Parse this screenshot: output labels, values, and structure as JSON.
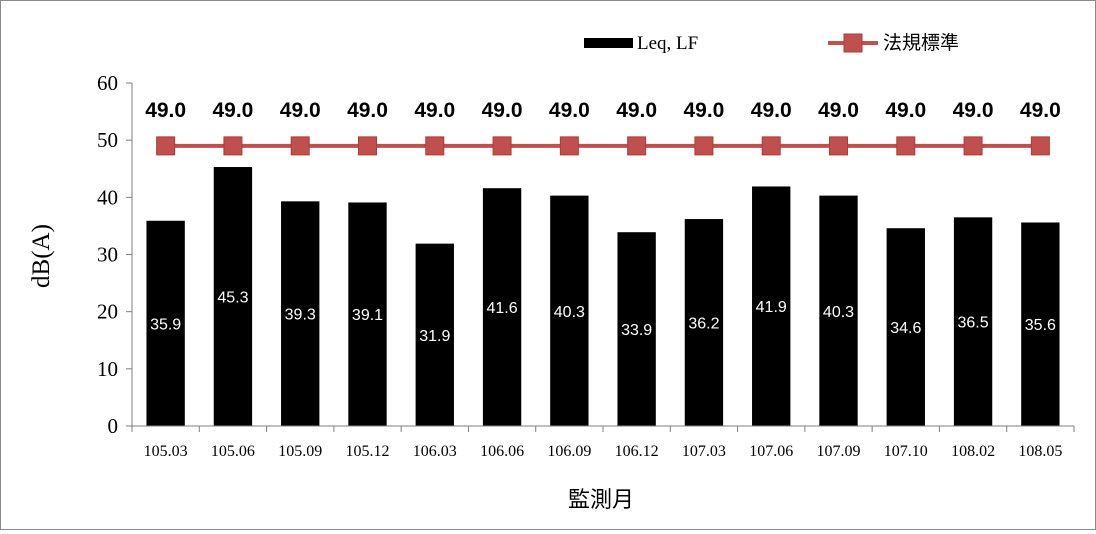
{
  "chart_data": {
    "type": "bar",
    "categories": [
      "105.03",
      "105.06",
      "105.09",
      "105.12",
      "106.03",
      "106.06",
      "106.09",
      "106.12",
      "107.03",
      "107.06",
      "107.09",
      "107.10",
      "108.02",
      "108.05"
    ],
    "series": [
      {
        "name": "Leq, LF",
        "kind": "bar",
        "color": "#000000",
        "values": [
          35.9,
          45.3,
          39.3,
          39.1,
          31.9,
          41.6,
          40.3,
          33.9,
          36.2,
          41.9,
          40.3,
          34.6,
          36.5,
          35.6
        ],
        "labels": [
          "35.9",
          "45.3",
          "39.3",
          "39.1",
          "31.9",
          "41.6",
          "40.3",
          "33.9",
          "36.2",
          "41.9",
          "40.3",
          "34.6",
          "36.5",
          "35.6"
        ]
      },
      {
        "name": "法規標準",
        "kind": "line",
        "color": "#c0504d",
        "values": [
          49.0,
          49.0,
          49.0,
          49.0,
          49.0,
          49.0,
          49.0,
          49.0,
          49.0,
          49.0,
          49.0,
          49.0,
          49.0,
          49.0
        ],
        "labels": [
          "49.0",
          "49.0",
          "49.0",
          "49.0",
          "49.0",
          "49.0",
          "49.0",
          "49.0",
          "49.0",
          "49.0",
          "49.0",
          "49.0",
          "49.0",
          "49.0"
        ]
      }
    ],
    "xlabel": "監測月",
    "ylabel": "dB(A)",
    "ylim": [
      0,
      60
    ],
    "yticks": [
      "0",
      "10",
      "20",
      "30",
      "40",
      "50",
      "60"
    ],
    "grid": false,
    "legend_position": "top-right"
  }
}
